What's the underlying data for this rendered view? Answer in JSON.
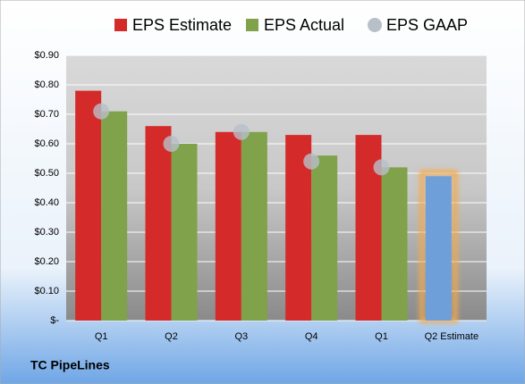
{
  "chart_data": {
    "type": "bar",
    "title": "TC PipeLines",
    "categories": [
      "Q1",
      "Q2",
      "Q3",
      "Q4",
      "Q1",
      "Q2 Estimate"
    ],
    "series": [
      {
        "name": "EPS Estimate",
        "color": "#d42a2a",
        "values": [
          0.78,
          0.66,
          0.64,
          0.63,
          0.63,
          0.49
        ],
        "highlight": {
          "index": 5,
          "color": "#6f9fd8",
          "glow": "#f5a94a"
        }
      },
      {
        "name": "EPS Actual",
        "color": "#7fa24a",
        "values": [
          0.71,
          0.6,
          0.64,
          0.56,
          0.52,
          null
        ]
      },
      {
        "name": "EPS GAAP",
        "color": "#b8bfc9",
        "marker": "circle",
        "values": [
          0.71,
          0.6,
          0.64,
          0.54,
          0.52,
          null
        ]
      }
    ],
    "ylim": [
      0,
      0.9
    ],
    "yticks": [
      {
        "value": 0,
        "label": "$-"
      },
      {
        "value": 0.1,
        "label": "$0.10"
      },
      {
        "value": 0.2,
        "label": "$0.20"
      },
      {
        "value": 0.3,
        "label": "$0.30"
      },
      {
        "value": 0.4,
        "label": "$0.40"
      },
      {
        "value": 0.5,
        "label": "$0.50"
      },
      {
        "value": 0.6,
        "label": "$0.60"
      },
      {
        "value": 0.7,
        "label": "$0.70"
      },
      {
        "value": 0.8,
        "label": "$0.80"
      },
      {
        "value": 0.9,
        "label": "$0.90"
      }
    ],
    "grid": true
  }
}
